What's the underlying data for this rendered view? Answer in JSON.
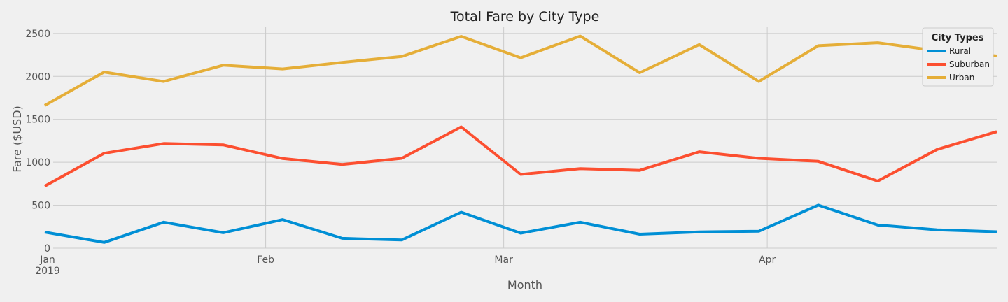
{
  "chart_data": {
    "type": "line",
    "title": "Total Fare by City Type",
    "xlabel": "Month",
    "ylabel": "Fare ($USD)",
    "ylim": [
      0,
      2580
    ],
    "y_ticks": [
      0,
      500,
      1000,
      1500,
      2000,
      2500
    ],
    "grid": true,
    "legend_title": "City Types",
    "legend_position": "top-right",
    "x_ticks": [
      {
        "date": "2019-01-01",
        "label": "Jan",
        "sublabel": "2019"
      },
      {
        "date": "2019-02-01",
        "label": "Feb",
        "sublabel": ""
      },
      {
        "date": "2019-03-01",
        "label": "Mar",
        "sublabel": ""
      },
      {
        "date": "2019-04-01",
        "label": "Apr",
        "sublabel": ""
      }
    ],
    "x": [
      "2019-01-06",
      "2019-01-13",
      "2019-01-20",
      "2019-01-27",
      "2019-02-03",
      "2019-02-10",
      "2019-02-17",
      "2019-02-24",
      "2019-03-03",
      "2019-03-10",
      "2019-03-17",
      "2019-03-24",
      "2019-03-31",
      "2019-04-07",
      "2019-04-14",
      "2019-04-21",
      "2019-04-28"
    ],
    "series": [
      {
        "name": "Rural",
        "color": "#008fd5",
        "values": [
          187,
          67,
          303,
          180,
          333,
          115,
          95,
          419,
          175,
          303,
          163,
          190,
          197,
          501,
          269,
          214,
          191
        ]
      },
      {
        "name": "Suburban",
        "color": "#fc4f30",
        "values": [
          722,
          1105,
          1218,
          1203,
          1043,
          974,
          1046,
          1412,
          859,
          926,
          906,
          1122,
          1046,
          1011,
          781,
          1150,
          1357
        ]
      },
      {
        "name": "Urban",
        "color": "#e5ae38",
        "values": [
          1661,
          2050,
          1940,
          2130,
          2087,
          2163,
          2232,
          2466,
          2217,
          2469,
          2043,
          2370,
          1940,
          2357,
          2392,
          2298,
          2238
        ]
      }
    ]
  }
}
